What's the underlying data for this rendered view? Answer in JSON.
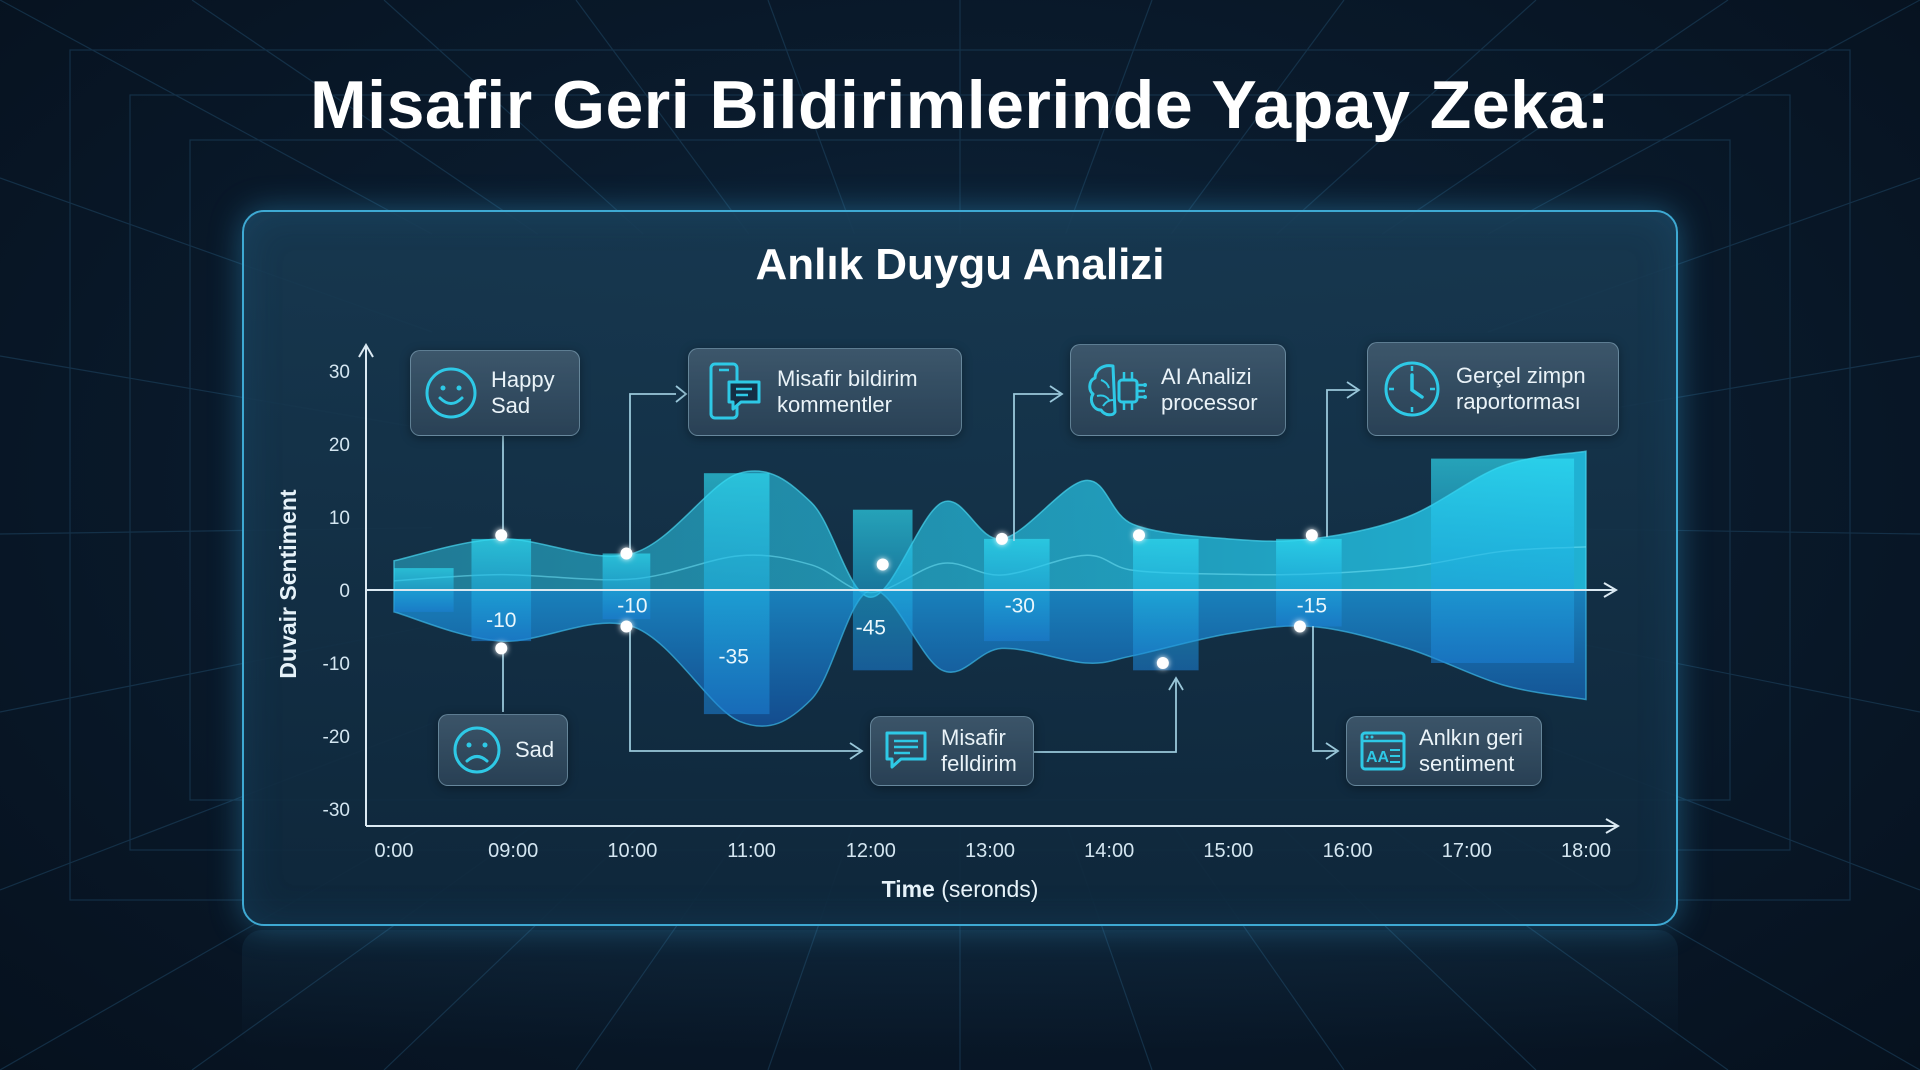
{
  "page": {
    "title": "Misafir Geri Bildirimlerinde Yapay Zeka:"
  },
  "chart_data": {
    "type": "area",
    "title": "Anlık Duygu Analizi",
    "ylabel": "Duvair Sentiment",
    "xlabel_main": "Time",
    "xlabel_unit": "(seronds)",
    "xlabel": "Time (seronds)",
    "ylim": [
      -30,
      30
    ],
    "yticks": [
      30,
      20,
      10,
      0,
      -10,
      -20,
      -30
    ],
    "xticks": [
      "0:00",
      "09:00",
      "10:00",
      "11:00",
      "12:00",
      "13:00",
      "14:00",
      "15:00",
      "16:00",
      "17:00",
      "18:00"
    ],
    "grid": false,
    "legend": "none",
    "series": [
      {
        "x": [
          0,
          0.9,
          2,
          2.9,
          3.5,
          4,
          4.6,
          5.1,
          5.8,
          6.2,
          7,
          7.7,
          8.5,
          9.3,
          10
        ],
        "values": [
          4,
          7,
          5,
          16,
          12,
          -1,
          12,
          7,
          15,
          9,
          7,
          7,
          10,
          17,
          19
        ]
      },
      {
        "x": [
          0,
          0.9,
          2,
          2.9,
          3.5,
          4,
          4.6,
          5.1,
          5.8,
          6.2,
          7,
          7.7,
          8.5,
          9.3,
          10
        ],
        "values": [
          -3,
          -7,
          -5,
          -18,
          -15,
          0,
          -11,
          -8,
          -10,
          -9,
          -6,
          -5,
          -8,
          -13,
          -15
        ]
      }
    ],
    "bars": [
      {
        "x_start": 0.0,
        "x_end": 0.5,
        "top": 3,
        "bottom": -3
      },
      {
        "x_start": 0.65,
        "x_end": 1.15,
        "top": 7,
        "bottom": -7
      },
      {
        "x_start": 1.75,
        "x_end": 2.15,
        "top": 5,
        "bottom": -4
      },
      {
        "x_start": 2.6,
        "x_end": 3.15,
        "top": 16,
        "bottom": -17
      },
      {
        "x_start": 3.85,
        "x_end": 4.35,
        "top": 11,
        "bottom": -11
      },
      {
        "x_start": 4.95,
        "x_end": 5.5,
        "top": 7,
        "bottom": -7
      },
      {
        "x_start": 6.2,
        "x_end": 6.75,
        "top": 7,
        "bottom": -11
      },
      {
        "x_start": 7.4,
        "x_end": 7.95,
        "top": 7,
        "bottom": -5
      },
      {
        "x_start": 8.7,
        "x_end": 9.9,
        "top": 18,
        "bottom": -10
      }
    ],
    "data_labels": [
      {
        "x": 0.9,
        "y": -4,
        "text": "-10"
      },
      {
        "x": 2.0,
        "y": -2,
        "text": "-10"
      },
      {
        "x": 2.85,
        "y": -9,
        "text": "-35"
      },
      {
        "x": 4.0,
        "y": -5,
        "text": "-45"
      },
      {
        "x": 5.25,
        "y": -2,
        "text": "-30"
      },
      {
        "x": 7.7,
        "y": -2,
        "text": "-15"
      }
    ],
    "points": [
      {
        "x": 0.9,
        "y": 7.5
      },
      {
        "x": 0.9,
        "y": -8
      },
      {
        "x": 1.95,
        "y": 5
      },
      {
        "x": 1.95,
        "y": -5
      },
      {
        "x": 4.1,
        "y": 3.5
      },
      {
        "x": 5.1,
        "y": 7
      },
      {
        "x": 6.25,
        "y": 7.5
      },
      {
        "x": 6.45,
        "y": -10
      },
      {
        "x": 7.7,
        "y": 7.5
      },
      {
        "x": 7.6,
        "y": -5
      }
    ]
  },
  "callouts": [
    {
      "lines": [
        "Happy",
        "Sad"
      ],
      "icon": "happy-face-icon"
    },
    {
      "lines": [
        "Misafir bildirim",
        "kommentler"
      ],
      "icon": "phone-chat-icon"
    },
    {
      "lines": [
        "AI Analizi",
        "processor"
      ],
      "icon": "ai-brain-chip-icon"
    },
    {
      "lines": [
        "Gerçel zimpn",
        "raportorması"
      ],
      "icon": "clock-icon"
    },
    {
      "lines": [
        "Sad"
      ],
      "icon": "sad-face-icon"
    },
    {
      "lines": [
        "Misafir",
        "felldirim"
      ],
      "icon": "chat-bubble-icon"
    },
    {
      "lines": [
        "Anlkın geri",
        "sentiment"
      ],
      "icon": "text-recognition-icon"
    }
  ],
  "colors": {
    "accent": "#1fc8e8",
    "accent_deep": "#1670c8",
    "card_border": "#3ea9d3",
    "background": "#0a1b2d",
    "axis": "#dbe9f2",
    "text": "#ffffff"
  }
}
